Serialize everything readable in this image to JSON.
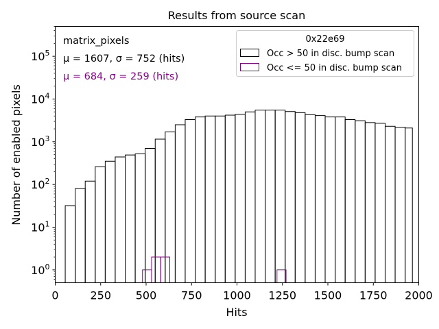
{
  "chart_data": {
    "type": "histogram",
    "title": "Results from source scan",
    "xlabel": "Hits",
    "ylabel": "Number of enabled pixels",
    "xlim": [
      0,
      2000
    ],
    "ylim_log10": [
      -0.3,
      5.7
    ],
    "x_ticks": [
      {
        "value": 0,
        "label": "0"
      },
      {
        "value": 250,
        "label": "250"
      },
      {
        "value": 500,
        "label": "500"
      },
      {
        "value": 750,
        "label": "750"
      },
      {
        "value": 1000,
        "label": "1000"
      },
      {
        "value": 1250,
        "label": "1250"
      },
      {
        "value": 1500,
        "label": "1500"
      },
      {
        "value": 1750,
        "label": "1750"
      },
      {
        "value": 2000,
        "label": "2000"
      }
    ],
    "y_ticks": [
      {
        "exp": 0,
        "base": "10",
        "sup": "0"
      },
      {
        "exp": 1,
        "base": "10",
        "sup": "1"
      },
      {
        "exp": 2,
        "base": "10",
        "sup": "2"
      },
      {
        "exp": 3,
        "base": "10",
        "sup": "3"
      },
      {
        "exp": 4,
        "base": "10",
        "sup": "4"
      },
      {
        "exp": 5,
        "base": "10",
        "sup": "5"
      }
    ],
    "annotations": {
      "name": "matrix_pixels",
      "stats_black": "μ = 1607, σ = 752 (hits)",
      "stats_purple": "μ = 684, σ = 259 (hits)"
    },
    "legend": {
      "title": "0x22e69",
      "position": "top-right",
      "entries": [
        "Occ > 50 in disc. bump scan",
        "Occ <= 50 in disc. bump scan"
      ]
    },
    "series": [
      {
        "name": "Occ > 50 in disc. bump scan",
        "color": "#000000",
        "edges": [
          55,
          110,
          165,
          220,
          275,
          330,
          385,
          440,
          495,
          550,
          605,
          660,
          715,
          770,
          825,
          880,
          935,
          990,
          1045,
          1100,
          1155,
          1210,
          1265,
          1320,
          1375,
          1430,
          1485,
          1540,
          1595,
          1650,
          1705,
          1760,
          1815,
          1870,
          1925,
          1965
        ],
        "values": [
          32,
          80,
          120,
          260,
          350,
          440,
          490,
          520,
          700,
          1150,
          1700,
          2500,
          3300,
          3800,
          4000,
          4000,
          4200,
          4400,
          5000,
          5500,
          5500,
          5500,
          5100,
          4800,
          4300,
          4100,
          3800,
          3800,
          3300,
          3100,
          2800,
          2700,
          2300,
          2200,
          2100
        ]
      },
      {
        "name": "Occ <= 50 in disc. bump scan",
        "color": "#8b008b",
        "edges": [
          480,
          530,
          580,
          630,
          1220,
          1270
        ],
        "values": [
          1,
          2,
          2,
          null,
          1
        ]
      }
    ]
  }
}
